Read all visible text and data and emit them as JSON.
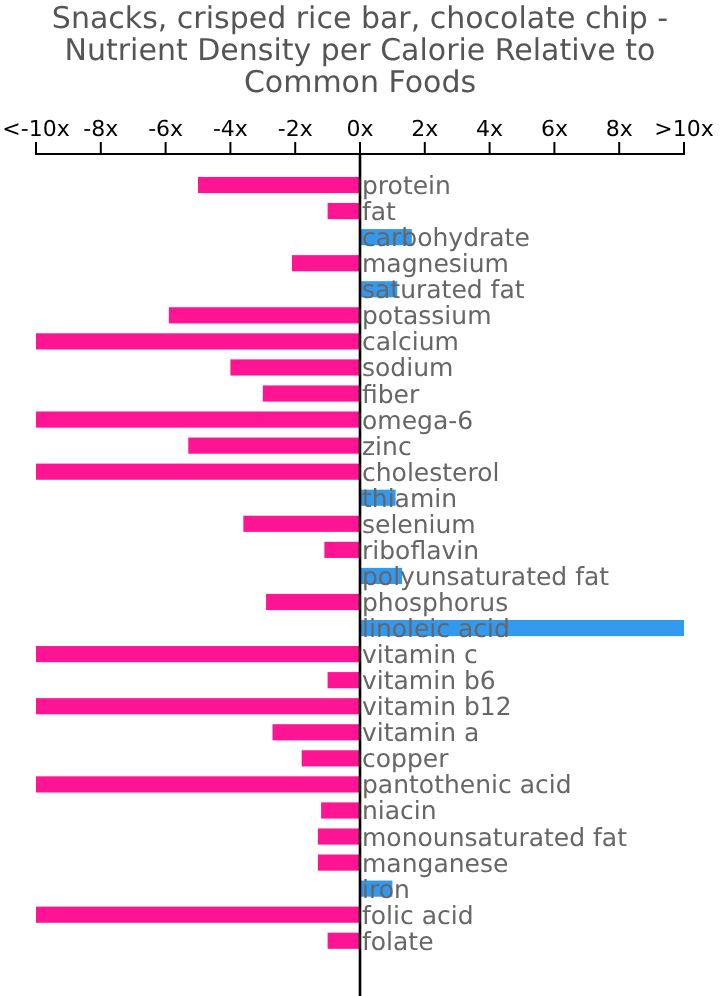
{
  "chart_data": {
    "type": "bar",
    "orientation": "horizontal",
    "title": "Snacks, crisped rice bar, chocolate chip - Nutrient Density per Calorie Relative to Common Foods",
    "categories": [
      "protein",
      "fat",
      "carbohydrate",
      "magnesium",
      "saturated fat",
      "potassium",
      "calcium",
      "sodium",
      "fiber",
      "omega-6",
      "zinc",
      "cholesterol",
      "thiamin",
      "selenium",
      "riboflavin",
      "polyunsaturated fat",
      "phosphorus",
      "linoleic acid",
      "vitamin c",
      "vitamin b6",
      "vitamin b12",
      "vitamin a",
      "copper",
      "pantothenic acid",
      "niacin",
      "monounsaturated fat",
      "manganese",
      "iron",
      "folic acid",
      "folate"
    ],
    "values": [
      -5.0,
      -1.0,
      1.6,
      -2.1,
      1.15,
      -5.9,
      -10,
      -4.0,
      -3.0,
      -10,
      -5.3,
      -10,
      1.1,
      -3.6,
      -1.1,
      1.3,
      -2.9,
      10,
      -10,
      -1.0,
      -10,
      -2.7,
      -1.8,
      -10,
      -1.2,
      -1.3,
      -1.3,
      1.0,
      -10,
      -1.0
    ],
    "colors": [
      "#ff1493",
      "#ff1493",
      "#3399ee",
      "#ff1493",
      "#3399ee",
      "#ff1493",
      "#ff1493",
      "#ff1493",
      "#ff1493",
      "#ff1493",
      "#ff1493",
      "#ff1493",
      "#3399ee",
      "#ff1493",
      "#ff1493",
      "#3399ee",
      "#ff1493",
      "#3399ee",
      "#ff1493",
      "#ff1493",
      "#ff1493",
      "#ff1493",
      "#ff1493",
      "#ff1493",
      "#ff1493",
      "#ff1493",
      "#ff1493",
      "#3399ee",
      "#ff1493",
      "#ff1493"
    ],
    "xlim": [
      -10,
      10
    ],
    "xticks": [
      {
        "value": -10,
        "label": "<-10x"
      },
      {
        "value": -8,
        "label": "-8x"
      },
      {
        "value": -6,
        "label": "-6x"
      },
      {
        "value": -4,
        "label": "-4x"
      },
      {
        "value": -2,
        "label": "-2x"
      },
      {
        "value": 0,
        "label": "0x"
      },
      {
        "value": 2,
        "label": "2x"
      },
      {
        "value": 4,
        "label": "4x"
      },
      {
        "value": 6,
        "label": "6x"
      },
      {
        "value": 8,
        "label": "8x"
      },
      {
        "value": 10,
        "label": ">10x"
      }
    ]
  }
}
